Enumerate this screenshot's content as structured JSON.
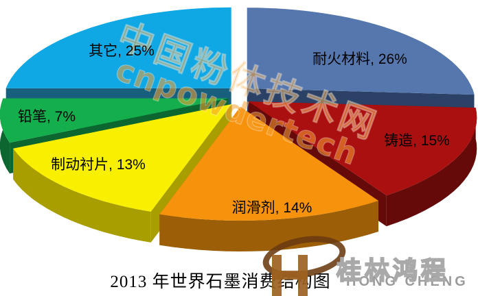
{
  "chart_data": {
    "type": "pie",
    "style": "3d-exploded",
    "title": "2013 年世界石墨消费结构图",
    "start_angle_deg": 0,
    "direction": "clockwise",
    "legend": "none",
    "data_label_format": "<category>, <value>%",
    "categories": [
      "耐火材料",
      "铸造",
      "润滑剂",
      "制动衬片",
      "铅笔",
      "其它"
    ],
    "values": [
      26,
      15,
      14,
      13,
      7,
      25
    ],
    "slices": [
      {
        "label": "耐火材料",
        "value": 26,
        "color": "#5577AE",
        "side_color": "#2C4166"
      },
      {
        "label": "铸造",
        "value": 15,
        "color": "#AA100F",
        "side_color": "#650909"
      },
      {
        "label": "润滑剂",
        "value": 14,
        "color": "#F6920B",
        "side_color": "#9C5F08"
      },
      {
        "label": "制动衬片",
        "value": 13,
        "color": "#F8F000",
        "side_color": "#A89E00"
      },
      {
        "label": "铅笔",
        "value": 7,
        "color": "#15AE4C",
        "side_color": "#0B6630"
      },
      {
        "label": "其它",
        "value": 25,
        "color": "#0FA7E4",
        "side_color": "#175F7C"
      }
    ]
  },
  "watermark": {
    "line1": "中国粉体技术网",
    "line2": "cnpowdertech",
    "color": "#F7A133"
  },
  "logo": {
    "brand": "桂林鸿程",
    "brand_latin": "HONG CHENG"
  }
}
